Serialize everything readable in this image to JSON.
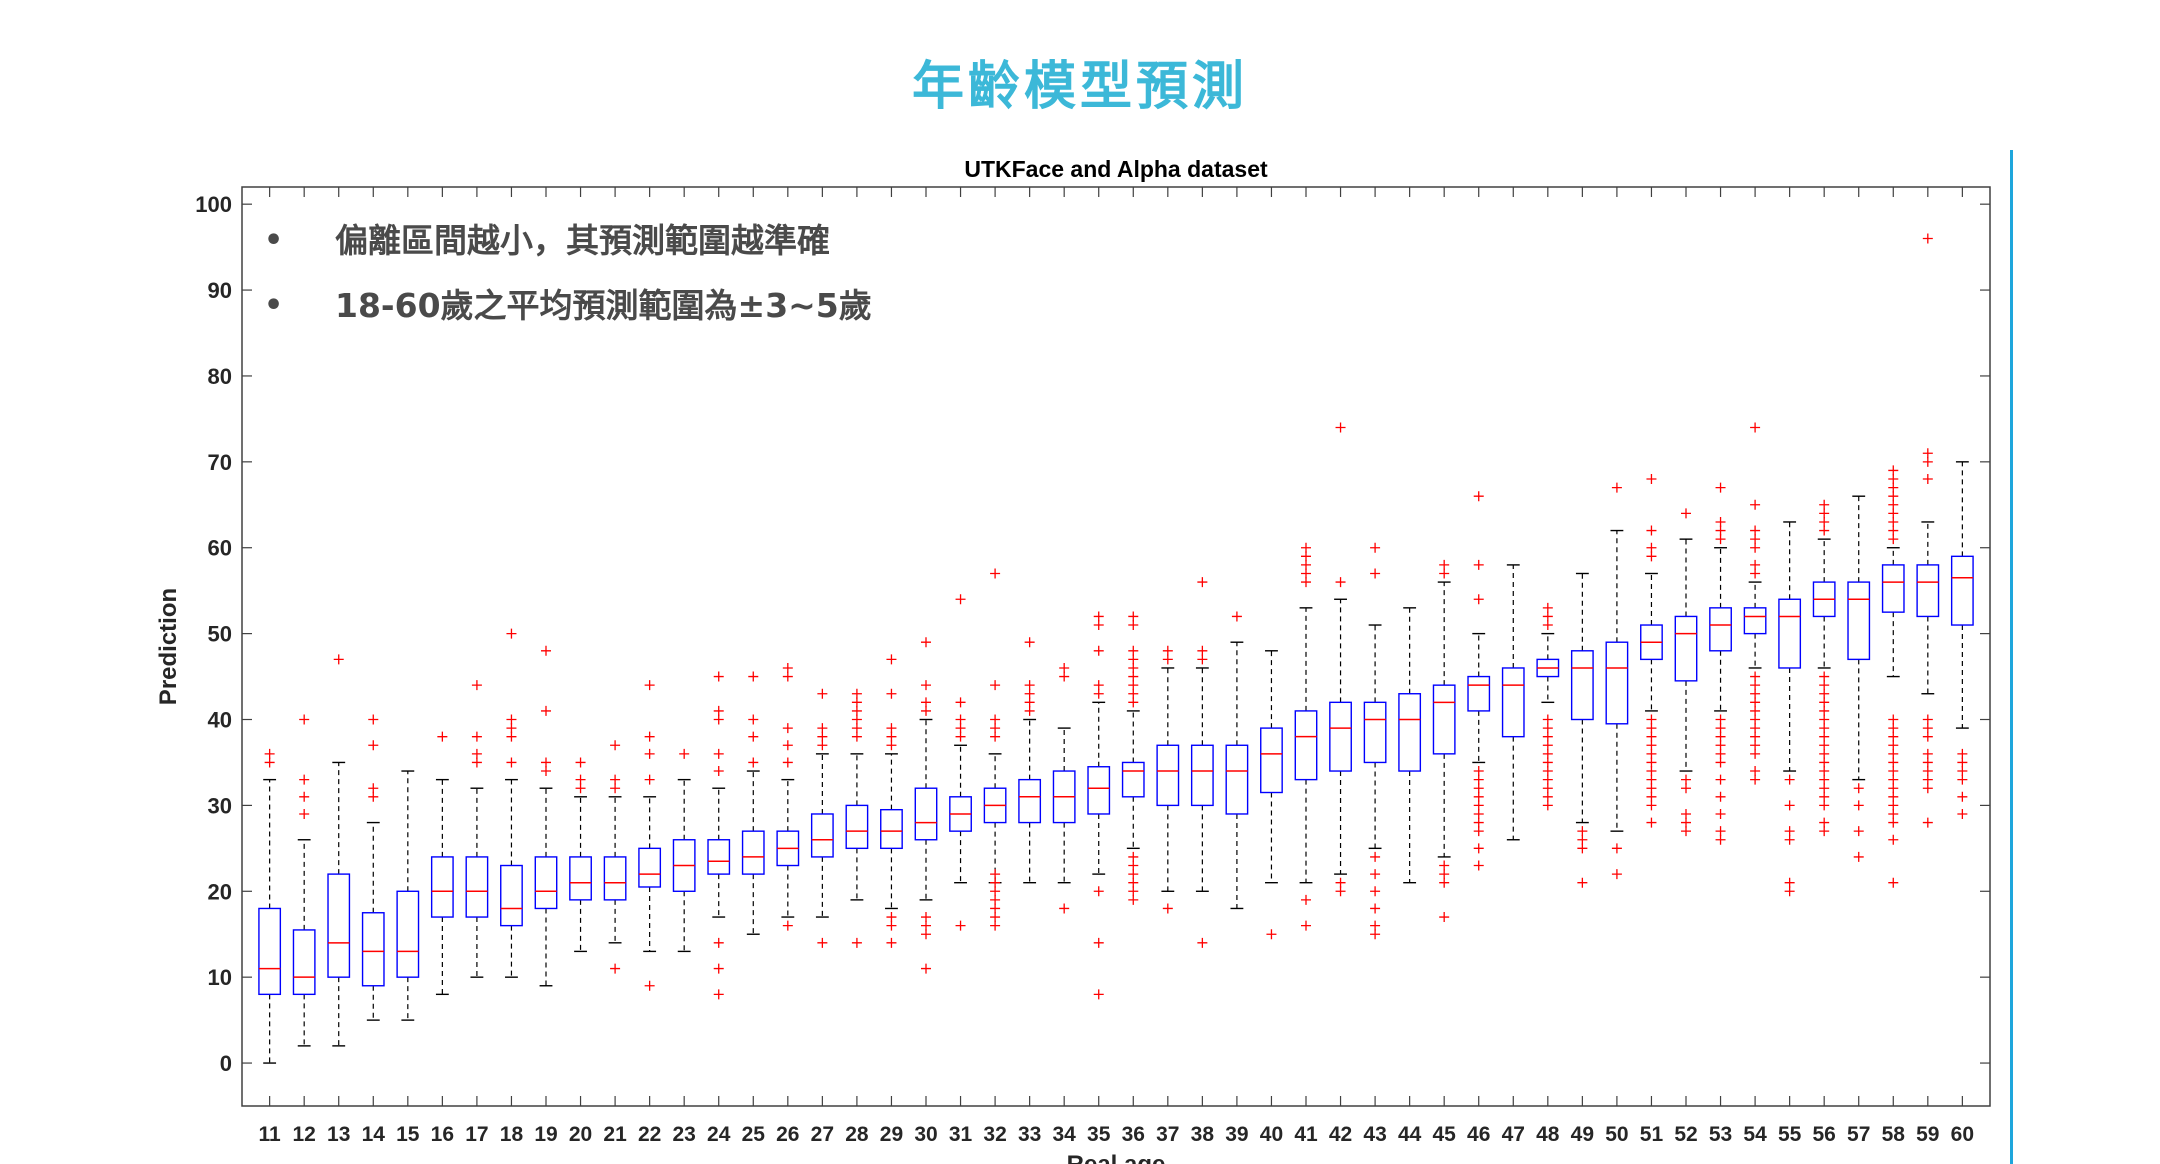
{
  "slide": {
    "title": "年齡模型預測",
    "bullets": [
      "偏離區間越小，其預測範圍越準確",
      "18-60歲之平均預測範圍為±3~5歲"
    ],
    "accent_color": "#3cb8d8",
    "accent_line_color": "#1ea6dc",
    "bullet_symbol": "•"
  },
  "chart_data": {
    "type": "box",
    "title": "UTKFace and Alpha dataset",
    "xlabel": "Real age",
    "ylabel": "Prediction",
    "ylim": [
      -5,
      102
    ],
    "yticks": [
      0,
      10,
      20,
      30,
      40,
      50,
      60,
      70,
      80,
      90,
      100
    ],
    "grid": false,
    "box_color": "#0000ff",
    "median_color": "#ff0000",
    "outlier_color": "#ff0000",
    "whisker_color": "#000000",
    "categories": [
      11,
      12,
      13,
      14,
      15,
      16,
      17,
      18,
      19,
      20,
      21,
      22,
      23,
      24,
      25,
      26,
      27,
      28,
      29,
      30,
      31,
      32,
      33,
      34,
      35,
      36,
      37,
      38,
      39,
      40,
      41,
      42,
      43,
      44,
      45,
      46,
      47,
      48,
      49,
      50,
      51,
      52,
      53,
      54,
      55,
      56,
      57,
      58,
      59,
      60
    ],
    "boxes": [
      {
        "age": 11,
        "whislo": 0,
        "q1": 8,
        "med": 11,
        "q3": 18,
        "whishi": 33,
        "fliers": [
          35,
          36
        ]
      },
      {
        "age": 12,
        "whislo": 2,
        "q1": 8,
        "med": 10,
        "q3": 15.5,
        "whishi": 26,
        "fliers": [
          29,
          31,
          33,
          40
        ]
      },
      {
        "age": 13,
        "whislo": 2,
        "q1": 10,
        "med": 14,
        "q3": 22,
        "whishi": 35,
        "fliers": [
          47
        ]
      },
      {
        "age": 14,
        "whislo": 5,
        "q1": 9,
        "med": 13,
        "q3": 17.5,
        "whishi": 28,
        "fliers": [
          31,
          32,
          37,
          40
        ]
      },
      {
        "age": 15,
        "whislo": 5,
        "q1": 10,
        "med": 13,
        "q3": 20,
        "whishi": 34,
        "fliers": []
      },
      {
        "age": 16,
        "whislo": 8,
        "q1": 17,
        "med": 20,
        "q3": 24,
        "whishi": 33,
        "fliers": [
          38
        ]
      },
      {
        "age": 17,
        "whislo": 10,
        "q1": 17,
        "med": 20,
        "q3": 24,
        "whishi": 32,
        "fliers": [
          35,
          36,
          38,
          44
        ]
      },
      {
        "age": 18,
        "whislo": 10,
        "q1": 16,
        "med": 18,
        "q3": 23,
        "whishi": 33,
        "fliers": [
          35,
          38,
          39,
          40,
          50
        ]
      },
      {
        "age": 19,
        "whislo": 9,
        "q1": 18,
        "med": 20,
        "q3": 24,
        "whishi": 32,
        "fliers": [
          34,
          35,
          41,
          48
        ]
      },
      {
        "age": 20,
        "whislo": 13,
        "q1": 19,
        "med": 21,
        "q3": 24,
        "whishi": 31,
        "fliers": [
          32,
          33,
          35
        ]
      },
      {
        "age": 21,
        "whislo": 14,
        "q1": 19,
        "med": 21,
        "q3": 24,
        "whishi": 31,
        "fliers": [
          11,
          32,
          33,
          37
        ]
      },
      {
        "age": 22,
        "whislo": 13,
        "q1": 20.5,
        "med": 22,
        "q3": 25,
        "whishi": 31,
        "fliers": [
          9,
          33,
          36,
          38,
          44
        ]
      },
      {
        "age": 23,
        "whislo": 13,
        "q1": 20,
        "med": 23,
        "q3": 26,
        "whishi": 33,
        "fliers": [
          36
        ]
      },
      {
        "age": 24,
        "whislo": 17,
        "q1": 22,
        "med": 23.5,
        "q3": 26,
        "whishi": 32,
        "fliers": [
          8,
          11,
          14,
          34,
          36,
          40,
          41,
          45
        ]
      },
      {
        "age": 25,
        "whislo": 15,
        "q1": 22,
        "med": 24,
        "q3": 27,
        "whishi": 34,
        "fliers": [
          35,
          38,
          40,
          45
        ]
      },
      {
        "age": 26,
        "whislo": 17,
        "q1": 23,
        "med": 25,
        "q3": 27,
        "whishi": 33,
        "fliers": [
          16,
          35,
          37,
          39,
          45,
          46
        ]
      },
      {
        "age": 27,
        "whislo": 17,
        "q1": 24,
        "med": 26,
        "q3": 29,
        "whishi": 36,
        "fliers": [
          14,
          37,
          38,
          39,
          43
        ]
      },
      {
        "age": 28,
        "whislo": 19,
        "q1": 25,
        "med": 27,
        "q3": 30,
        "whishi": 36,
        "fliers": [
          14,
          38,
          39,
          40,
          41,
          42,
          43
        ]
      },
      {
        "age": 29,
        "whislo": 18,
        "q1": 25,
        "med": 27,
        "q3": 29.5,
        "whishi": 36,
        "fliers": [
          14,
          16,
          17,
          37,
          38,
          39,
          43,
          47
        ]
      },
      {
        "age": 30,
        "whislo": 19,
        "q1": 26,
        "med": 28,
        "q3": 32,
        "whishi": 40,
        "fliers": [
          11,
          15,
          16,
          17,
          41,
          42,
          44,
          49
        ]
      },
      {
        "age": 31,
        "whislo": 21,
        "q1": 27,
        "med": 29,
        "q3": 31,
        "whishi": 37,
        "fliers": [
          16,
          38,
          39,
          40,
          42,
          54
        ]
      },
      {
        "age": 32,
        "whislo": 21,
        "q1": 28,
        "med": 30,
        "q3": 32,
        "whishi": 36,
        "fliers": [
          16,
          17,
          18,
          19,
          20,
          21,
          22,
          38,
          39,
          40,
          44,
          57
        ]
      },
      {
        "age": 33,
        "whislo": 21,
        "q1": 28,
        "med": 31,
        "q3": 33,
        "whishi": 40,
        "fliers": [
          41,
          42,
          43,
          44,
          49
        ]
      },
      {
        "age": 34,
        "whislo": 21,
        "q1": 28,
        "med": 31,
        "q3": 34,
        "whishi": 39,
        "fliers": [
          18,
          45,
          46
        ]
      },
      {
        "age": 35,
        "whislo": 22,
        "q1": 29,
        "med": 32,
        "q3": 34.5,
        "whishi": 42,
        "fliers": [
          8,
          14,
          20,
          43,
          44,
          48,
          51,
          52
        ]
      },
      {
        "age": 36,
        "whislo": 25,
        "q1": 31,
        "med": 34,
        "q3": 35,
        "whishi": 41,
        "fliers": [
          19,
          20,
          21,
          22,
          23,
          24,
          42,
          43,
          44,
          45,
          46,
          47,
          48,
          51,
          52
        ]
      },
      {
        "age": 37,
        "whislo": 20,
        "q1": 30,
        "med": 34,
        "q3": 37,
        "whishi": 46,
        "fliers": [
          18,
          47,
          48
        ]
      },
      {
        "age": 38,
        "whislo": 20,
        "q1": 30,
        "med": 34,
        "q3": 37,
        "whishi": 46,
        "fliers": [
          14,
          47,
          48,
          56
        ]
      },
      {
        "age": 39,
        "whislo": 18,
        "q1": 29,
        "med": 34,
        "q3": 37,
        "whishi": 49,
        "fliers": [
          52
        ]
      },
      {
        "age": 40,
        "whislo": 21,
        "q1": 31.5,
        "med": 36,
        "q3": 39,
        "whishi": 48,
        "fliers": [
          15
        ]
      },
      {
        "age": 41,
        "whislo": 21,
        "q1": 33,
        "med": 38,
        "q3": 41,
        "whishi": 53,
        "fliers": [
          16,
          19,
          56,
          57,
          58,
          59,
          60
        ]
      },
      {
        "age": 42,
        "whislo": 22,
        "q1": 34,
        "med": 39,
        "q3": 42,
        "whishi": 54,
        "fliers": [
          20,
          21,
          56,
          74
        ]
      },
      {
        "age": 43,
        "whislo": 25,
        "q1": 35,
        "med": 40,
        "q3": 42,
        "whishi": 51,
        "fliers": [
          15,
          16,
          18,
          20,
          22,
          24,
          57,
          60
        ]
      },
      {
        "age": 44,
        "whislo": 21,
        "q1": 34,
        "med": 40,
        "q3": 43,
        "whishi": 53,
        "fliers": []
      },
      {
        "age": 45,
        "whislo": 24,
        "q1": 36,
        "med": 42,
        "q3": 44,
        "whishi": 56,
        "fliers": [
          17,
          21,
          22,
          23,
          57,
          58
        ]
      },
      {
        "age": 46,
        "whislo": 35,
        "q1": 41,
        "med": 44,
        "q3": 45,
        "whishi": 50,
        "fliers": [
          23,
          25,
          27,
          28,
          29,
          30,
          31,
          32,
          33,
          34,
          54,
          58,
          66
        ]
      },
      {
        "age": 47,
        "whislo": 26,
        "q1": 38,
        "med": 44,
        "q3": 46,
        "whishi": 58,
        "fliers": []
      },
      {
        "age": 48,
        "whislo": 42,
        "q1": 45,
        "med": 46,
        "q3": 47,
        "whishi": 50,
        "fliers": [
          30,
          31,
          32,
          33,
          34,
          35,
          36,
          37,
          38,
          39,
          40,
          51,
          52,
          53
        ]
      },
      {
        "age": 49,
        "whislo": 28,
        "q1": 40,
        "med": 46,
        "q3": 48,
        "whishi": 57,
        "fliers": [
          21,
          25,
          26,
          27
        ]
      },
      {
        "age": 50,
        "whislo": 27,
        "q1": 39.5,
        "med": 46,
        "q3": 49,
        "whishi": 62,
        "fliers": [
          22,
          25,
          67
        ]
      },
      {
        "age": 51,
        "whislo": 41,
        "q1": 47,
        "med": 49,
        "q3": 51,
        "whishi": 57,
        "fliers": [
          28,
          30,
          31,
          32,
          33,
          34,
          35,
          36,
          37,
          38,
          39,
          40,
          59,
          60,
          62,
          68
        ]
      },
      {
        "age": 52,
        "whislo": 34,
        "q1": 44.5,
        "med": 50,
        "q3": 52,
        "whishi": 61,
        "fliers": [
          27,
          28,
          29,
          32,
          33,
          64
        ]
      },
      {
        "age": 53,
        "whislo": 41,
        "q1": 48,
        "med": 51,
        "q3": 53,
        "whishi": 60,
        "fliers": [
          26,
          27,
          29,
          31,
          33,
          35,
          36,
          37,
          38,
          39,
          40,
          61,
          62,
          63,
          67
        ]
      },
      {
        "age": 54,
        "whislo": 46,
        "q1": 50,
        "med": 52,
        "q3": 53,
        "whishi": 56,
        "fliers": [
          33,
          34,
          36,
          37,
          38,
          39,
          40,
          41,
          42,
          43,
          44,
          45,
          57,
          58,
          60,
          61,
          62,
          65,
          74
        ]
      },
      {
        "age": 55,
        "whislo": 34,
        "q1": 46,
        "med": 52,
        "q3": 54,
        "whishi": 63,
        "fliers": [
          20,
          21,
          26,
          27,
          30,
          33
        ]
      },
      {
        "age": 56,
        "whislo": 46,
        "q1": 52,
        "med": 54,
        "q3": 56,
        "whishi": 61,
        "fliers": [
          27,
          28,
          30,
          31,
          32,
          33,
          34,
          35,
          36,
          37,
          38,
          39,
          40,
          41,
          42,
          43,
          44,
          45,
          62,
          63,
          64,
          65
        ]
      },
      {
        "age": 57,
        "whislo": 33,
        "q1": 47,
        "med": 54,
        "q3": 56,
        "whishi": 66,
        "fliers": [
          24,
          27,
          30,
          32
        ]
      },
      {
        "age": 58,
        "whislo": 45,
        "q1": 52.5,
        "med": 56,
        "q3": 58,
        "whishi": 60,
        "fliers": [
          21,
          26,
          28,
          29,
          30,
          31,
          32,
          33,
          34,
          35,
          36,
          37,
          38,
          39,
          40,
          61,
          62,
          63,
          64,
          65,
          66,
          67,
          68,
          69
        ]
      },
      {
        "age": 59,
        "whislo": 43,
        "q1": 52,
        "med": 56,
        "q3": 58,
        "whishi": 63,
        "fliers": [
          28,
          32,
          33,
          34,
          35,
          36,
          38,
          39,
          40,
          68,
          70,
          71,
          96
        ]
      },
      {
        "age": 60,
        "whislo": 39,
        "q1": 51,
        "med": 56.5,
        "q3": 59,
        "whishi": 70,
        "fliers": [
          29,
          31,
          33,
          34,
          35,
          36
        ]
      }
    ]
  }
}
